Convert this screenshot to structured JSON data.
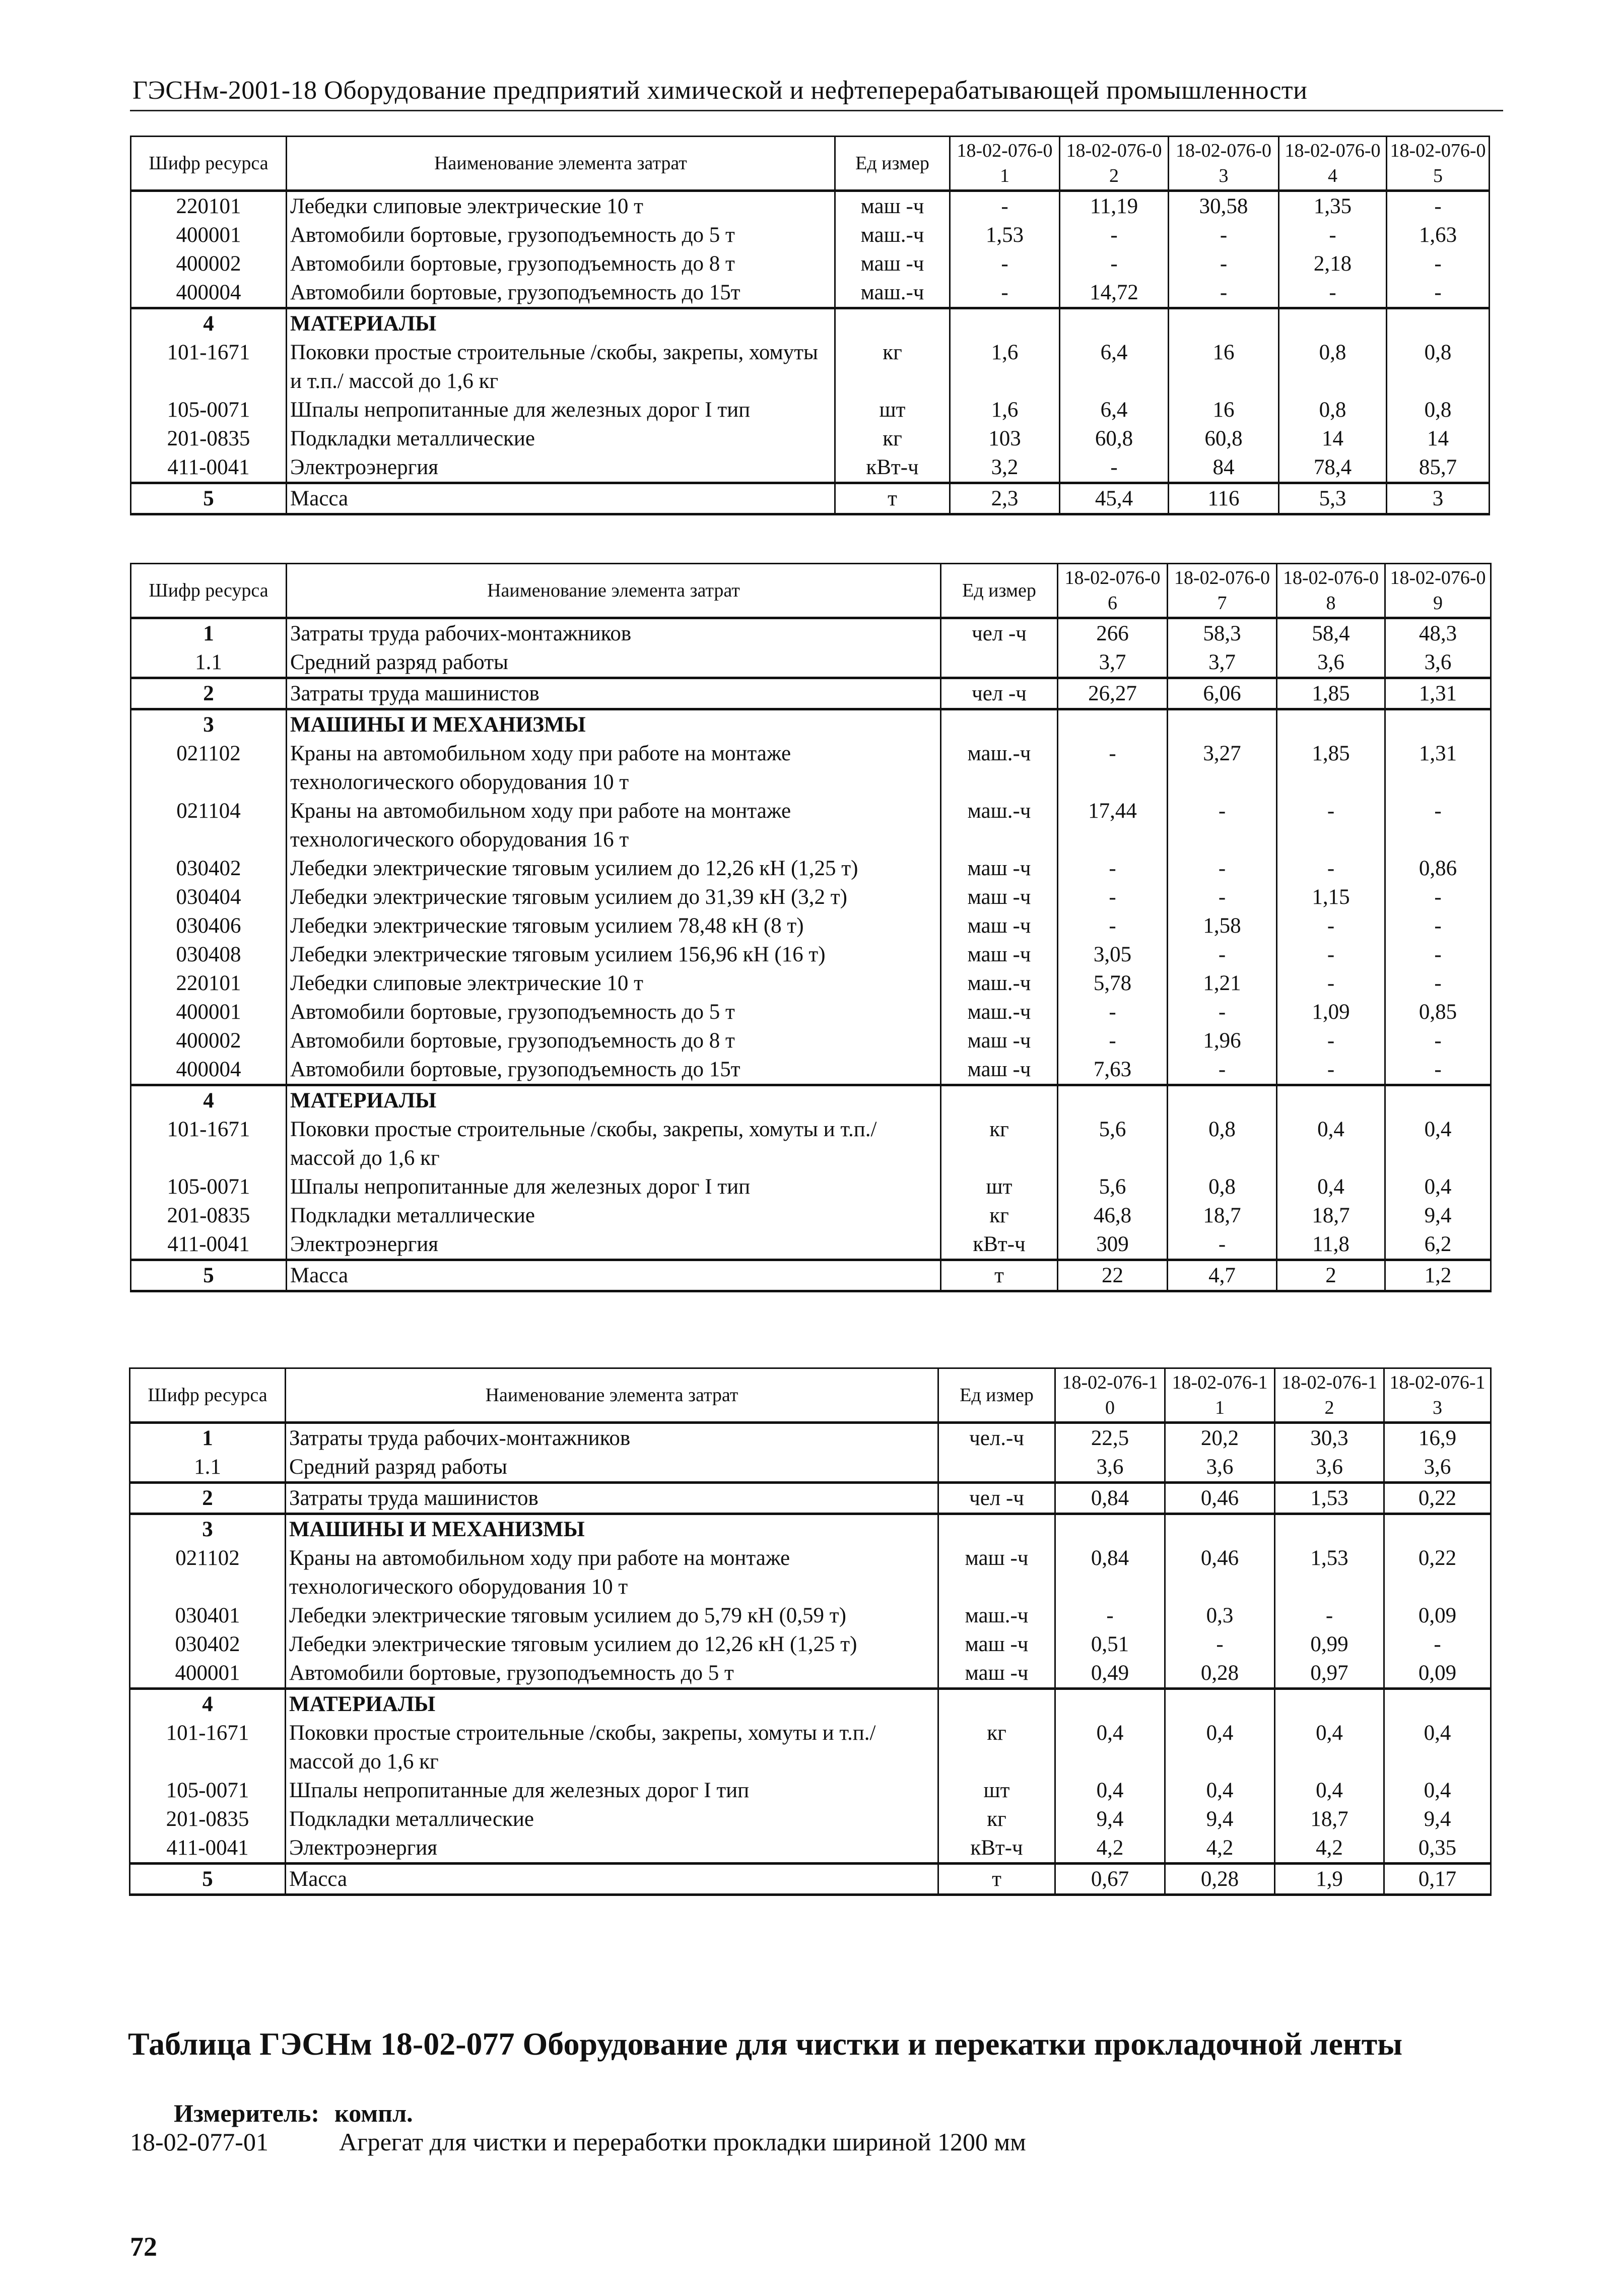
{
  "header": {
    "running_title": "ГЭСНм-2001-18 Оборудование предприятий химической и нефтеперерабатывающей промышленности"
  },
  "tables": [
    {
      "columns": [
        "Шифр ресурса",
        "Наименование элемента затрат",
        "Ед измер",
        "18-02-076-01",
        "18-02-076-02",
        "18-02-076-03",
        "18-02-076-04",
        "18-02-076-05"
      ],
      "groups": [
        [
          {
            "code": "220101",
            "name": "Лебедки слиповые электрические 10 т",
            "unit": "маш -ч",
            "values": [
              "-",
              "11,19",
              "30,58",
              "1,35",
              "-"
            ]
          },
          {
            "code": "400001",
            "name": "Автомобили бортовые, грузоподъемность до 5 т",
            "unit": "маш.-ч",
            "values": [
              "1,53",
              "-",
              "-",
              "-",
              "1,63"
            ]
          },
          {
            "code": "400002",
            "name": "Автомобили бортовые, грузоподъемность до 8 т",
            "unit": "маш -ч",
            "values": [
              "-",
              "-",
              "-",
              "2,18",
              "-"
            ]
          },
          {
            "code": "400004",
            "name": "Автомобили бортовые, грузоподъемность до 15т",
            "unit": "маш.-ч",
            "values": [
              "-",
              "14,72",
              "-",
              "-",
              "-"
            ]
          }
        ],
        [
          {
            "code": "4",
            "name": "МАТЕРИАЛЫ",
            "unit": "",
            "values": [
              "",
              "",
              "",
              "",
              ""
            ],
            "bold": true
          },
          {
            "code": "101-1671",
            "name": "Поковки простые строительные /скобы, закрепы, хомуты и т.п./ массой до 1,6 кг",
            "unit": "кг",
            "values": [
              "1,6",
              "6,4",
              "16",
              "0,8",
              "0,8"
            ]
          },
          {
            "code": "105-0071",
            "name": "Шпалы непропитанные для железных дорог I тип",
            "unit": "шт",
            "values": [
              "1,6",
              "6,4",
              "16",
              "0,8",
              "0,8"
            ]
          },
          {
            "code": "201-0835",
            "name": "Подкладки металлические",
            "unit": "кг",
            "values": [
              "103",
              "60,8",
              "60,8",
              "14",
              "14"
            ]
          },
          {
            "code": "411-0041",
            "name": "Электроэнергия",
            "unit": "кВт-ч",
            "values": [
              "3,2",
              "-",
              "84",
              "78,4",
              "85,7"
            ]
          }
        ],
        [
          {
            "code": "5",
            "name": "Масса",
            "unit": "т",
            "values": [
              "2,3",
              "45,4",
              "116",
              "5,3",
              "3"
            ],
            "boldcode": true
          }
        ]
      ]
    },
    {
      "columns": [
        "Шифр ресурса",
        "Наименование элемента затрат",
        "Ед измер",
        "18-02-076-06",
        "18-02-076-07",
        "18-02-076-08",
        "18-02-076-09"
      ],
      "groups": [
        [
          {
            "code": "1",
            "name": "Затраты труда рабочих-монтажников",
            "unit": "чел -ч",
            "values": [
              "266",
              "58,3",
              "58,4",
              "48,3"
            ],
            "boldcode": true
          },
          {
            "code": "1.1",
            "name": "Средний разряд работы",
            "unit": "",
            "values": [
              "3,7",
              "3,7",
              "3,6",
              "3,6"
            ]
          }
        ],
        [
          {
            "code": "2",
            "name": "Затраты труда машинистов",
            "unit": "чел -ч",
            "values": [
              "26,27",
              "6,06",
              "1,85",
              "1,31"
            ],
            "boldcode": true
          }
        ],
        [
          {
            "code": "3",
            "name": "МАШИНЫ И МЕХАНИЗМЫ",
            "unit": "",
            "values": [
              "",
              "",
              "",
              ""
            ],
            "bold": true
          },
          {
            "code": "021102",
            "name": "Краны на автомобильном ходу при работе на монтаже технологического оборудования 10 т",
            "unit": "маш.-ч",
            "values": [
              "-",
              "3,27",
              "1,85",
              "1,31"
            ]
          },
          {
            "code": "021104",
            "name": "Краны на автомобильном ходу при работе на монтаже технологического оборудования 16 т",
            "unit": "маш.-ч",
            "values": [
              "17,44",
              "-",
              "-",
              "-"
            ]
          },
          {
            "code": "030402",
            "name": "Лебедки электрические тяговым усилием до 12,26 кН (1,25 т)",
            "unit": "маш -ч",
            "values": [
              "-",
              "-",
              "-",
              "0,86"
            ]
          },
          {
            "code": "030404",
            "name": "Лебедки электрические тяговым усилием до 31,39 кН (3,2 т)",
            "unit": "маш -ч",
            "values": [
              "-",
              "-",
              "1,15",
              "-"
            ]
          },
          {
            "code": "030406",
            "name": "Лебедки электрические тяговым усилием 78,48 кН (8 т)",
            "unit": "маш -ч",
            "values": [
              "-",
              "1,58",
              "-",
              "-"
            ]
          },
          {
            "code": "030408",
            "name": "Лебедки электрические тяговым усилием 156,96 кН (16 т)",
            "unit": "маш -ч",
            "values": [
              "3,05",
              "-",
              "-",
              "-"
            ]
          },
          {
            "code": "220101",
            "name": "Лебедки слиповые электрические 10 т",
            "unit": "маш.-ч",
            "values": [
              "5,78",
              "1,21",
              "-",
              "-"
            ]
          },
          {
            "code": "400001",
            "name": "Автомобили бортовые, грузоподъемность до 5 т",
            "unit": "маш.-ч",
            "values": [
              "-",
              "-",
              "1,09",
              "0,85"
            ]
          },
          {
            "code": "400002",
            "name": "Автомобили бортовые, грузоподъемность до 8 т",
            "unit": "маш -ч",
            "values": [
              "-",
              "1,96",
              "-",
              "-"
            ]
          },
          {
            "code": "400004",
            "name": "Автомобили бортовые, грузоподъемность до 15т",
            "unit": "маш -ч",
            "values": [
              "7,63",
              "-",
              "-",
              "-"
            ]
          }
        ],
        [
          {
            "code": "4",
            "name": "МАТЕРИАЛЫ",
            "unit": "",
            "values": [
              "",
              "",
              "",
              ""
            ],
            "bold": true
          },
          {
            "code": "101-1671",
            "name": "Поковки простые строительные /скобы, закрепы, хомуты и т.п./ массой до 1,6 кг",
            "unit": "кг",
            "values": [
              "5,6",
              "0,8",
              "0,4",
              "0,4"
            ]
          },
          {
            "code": "105-0071",
            "name": "Шпалы непропитанные для железных дорог I тип",
            "unit": "шт",
            "values": [
              "5,6",
              "0,8",
              "0,4",
              "0,4"
            ]
          },
          {
            "code": "201-0835",
            "name": "Подкладки металлические",
            "unit": "кг",
            "values": [
              "46,8",
              "18,7",
              "18,7",
              "9,4"
            ]
          },
          {
            "code": "411-0041",
            "name": "Электроэнергия",
            "unit": "кВт-ч",
            "values": [
              "309",
              "-",
              "11,8",
              "6,2"
            ]
          }
        ],
        [
          {
            "code": "5",
            "name": "Масса",
            "unit": "т",
            "values": [
              "22",
              "4,7",
              "2",
              "1,2"
            ],
            "boldcode": true
          }
        ]
      ]
    },
    {
      "columns": [
        "Шифр ресурса",
        "Наименование элемента затрат",
        "Ед измер",
        "18-02-076-10",
        "18-02-076-11",
        "18-02-076-12",
        "18-02-076-13"
      ],
      "groups": [
        [
          {
            "code": "1",
            "name": "Затраты труда рабочих-монтажников",
            "unit": "чел.-ч",
            "values": [
              "22,5",
              "20,2",
              "30,3",
              "16,9"
            ],
            "boldcode": true
          },
          {
            "code": "1.1",
            "name": "Средний разряд работы",
            "unit": "",
            "values": [
              "3,6",
              "3,6",
              "3,6",
              "3,6"
            ]
          }
        ],
        [
          {
            "code": "2",
            "name": "Затраты труда машинистов",
            "unit": "чел -ч",
            "values": [
              "0,84",
              "0,46",
              "1,53",
              "0,22"
            ],
            "boldcode": true
          }
        ],
        [
          {
            "code": "3",
            "name": "МАШИНЫ И МЕХАНИЗМЫ",
            "unit": "",
            "values": [
              "",
              "",
              "",
              ""
            ],
            "bold": true
          },
          {
            "code": "021102",
            "name": "Краны на автомобильном ходу при работе на монтаже технологического оборудования 10 т",
            "unit": "маш -ч",
            "values": [
              "0,84",
              "0,46",
              "1,53",
              "0,22"
            ]
          },
          {
            "code": "030401",
            "name": "Лебедки электрические тяговым усилием до 5,79 кН (0,59 т)",
            "unit": "маш.-ч",
            "values": [
              "-",
              "0,3",
              "-",
              "0,09"
            ]
          },
          {
            "code": "030402",
            "name": "Лебедки электрические тяговым усилием до 12,26 кН (1,25 т)",
            "unit": "маш -ч",
            "values": [
              "0,51",
              "-",
              "0,99",
              "-"
            ]
          },
          {
            "code": "400001",
            "name": "Автомобили бортовые, грузоподъемность до 5 т",
            "unit": "маш -ч",
            "values": [
              "0,49",
              "0,28",
              "0,97",
              "0,09"
            ]
          }
        ],
        [
          {
            "code": "4",
            "name": "МАТЕРИАЛЫ",
            "unit": "",
            "values": [
              "",
              "",
              "",
              ""
            ],
            "bold": true
          },
          {
            "code": "101-1671",
            "name": "Поковки простые строительные /скобы, закрепы, хомуты и т.п./ массой до 1,6 кг",
            "unit": "кг",
            "values": [
              "0,4",
              "0,4",
              "0,4",
              "0,4"
            ]
          },
          {
            "code": "105-0071",
            "name": "Шпалы непропитанные для железных дорог I тип",
            "unit": "шт",
            "values": [
              "0,4",
              "0,4",
              "0,4",
              "0,4"
            ]
          },
          {
            "code": "201-0835",
            "name": "Подкладки металлические",
            "unit": "кг",
            "values": [
              "9,4",
              "9,4",
              "18,7",
              "9,4"
            ]
          },
          {
            "code": "411-0041",
            "name": "Электроэнергия",
            "unit": "кВт-ч",
            "values": [
              "4,2",
              "4,2",
              "4,2",
              "0,35"
            ]
          }
        ],
        [
          {
            "code": "5",
            "name": "Масса",
            "unit": "т",
            "values": [
              "0,67",
              "0,28",
              "1,9",
              "0,17"
            ],
            "boldcode": true
          }
        ]
      ]
    }
  ],
  "section": {
    "title": "Таблица ГЭСНм 18-02-077 Оборудование для чистки и перекатки прокладочной ленты",
    "measure_label": "Измеритель:",
    "measure_value": "компл.",
    "items": [
      {
        "code": "18-02-077-01",
        "text": "Агрегат для чистки и переработки прокладки шириной 1200 мм"
      }
    ]
  },
  "footer": {
    "page_number": "72"
  }
}
